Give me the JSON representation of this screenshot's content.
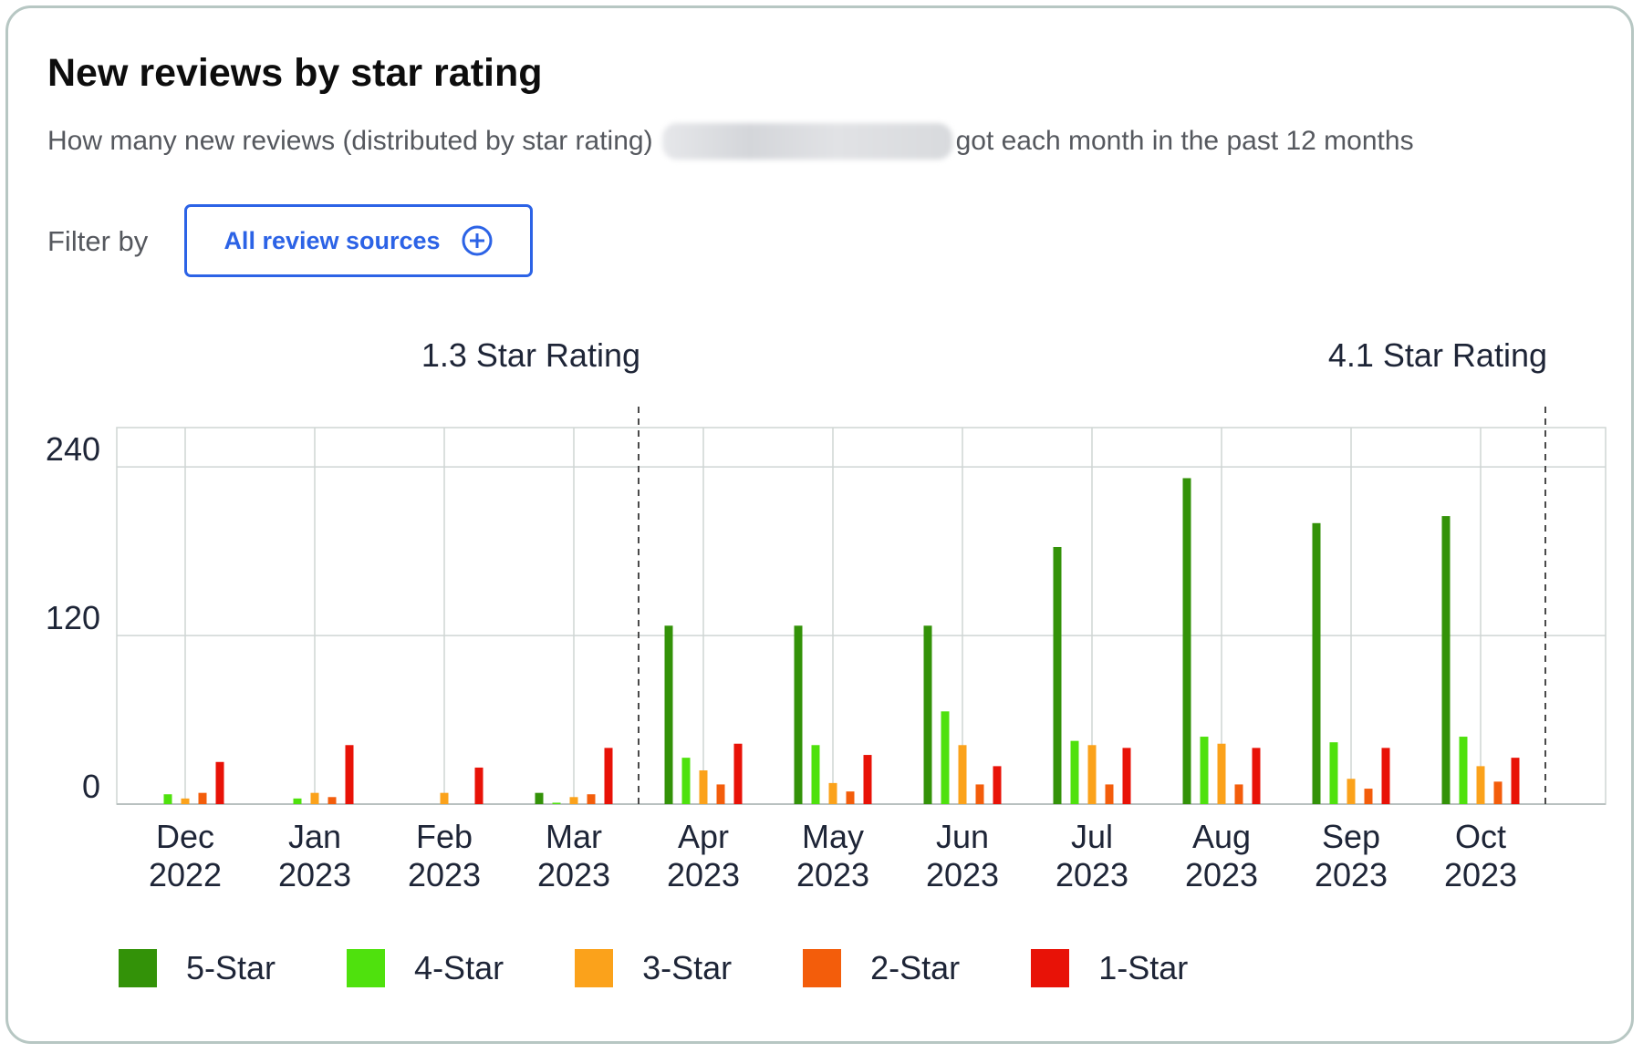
{
  "card": {
    "title": "New reviews by star rating",
    "subtitle_before": "How many new reviews (distributed by star rating)",
    "subtitle_after": "got each month in the past 12 months"
  },
  "filter": {
    "label": "Filter by",
    "button_label": "All review sources",
    "button_icon": "plus-circle-icon"
  },
  "colors": {
    "five_star": "#339208",
    "four_star": "#4fe10d",
    "three_star": "#fba21b",
    "two_star": "#f35d0b",
    "one_star": "#e81207",
    "accent": "#2c63e6"
  },
  "chart_data": {
    "type": "bar",
    "categories": [
      [
        "Dec",
        "2022"
      ],
      [
        "Jan",
        "2023"
      ],
      [
        "Feb",
        "2023"
      ],
      [
        "Mar",
        "2023"
      ],
      [
        "Apr",
        "2023"
      ],
      [
        "May",
        "2023"
      ],
      [
        "Jun",
        "2023"
      ],
      [
        "Jul",
        "2023"
      ],
      [
        "Aug",
        "2023"
      ],
      [
        "Sep",
        "2023"
      ],
      [
        "Oct",
        "2023"
      ]
    ],
    "series": [
      {
        "name": "5-Star",
        "color": "#339208",
        "values": [
          0,
          0,
          0,
          8,
          127,
          127,
          127,
          183,
          232,
          200,
          205
        ]
      },
      {
        "name": "4-Star",
        "color": "#4fe10d",
        "values": [
          7,
          4,
          0,
          1,
          33,
          42,
          66,
          45,
          48,
          44,
          48
        ]
      },
      {
        "name": "3-Star",
        "color": "#fba21b",
        "values": [
          4,
          8,
          8,
          5,
          24,
          15,
          42,
          42,
          43,
          18,
          27
        ]
      },
      {
        "name": "2-Star",
        "color": "#f35d0b",
        "values": [
          8,
          5,
          0,
          7,
          14,
          9,
          14,
          14,
          14,
          11,
          16
        ]
      },
      {
        "name": "1-Star",
        "color": "#e81207",
        "values": [
          30,
          42,
          26,
          40,
          43,
          35,
          27,
          40,
          40,
          40,
          33
        ]
      }
    ],
    "y_ticks": [
      0,
      120,
      240
    ],
    "ylim": [
      0,
      268
    ],
    "grid": true,
    "rating_annotations": [
      {
        "label": "1.3 Star Rating",
        "after_category": 3
      },
      {
        "label": "4.1 Star Rating",
        "after_category": 10
      }
    ],
    "legend_position": "bottom"
  }
}
